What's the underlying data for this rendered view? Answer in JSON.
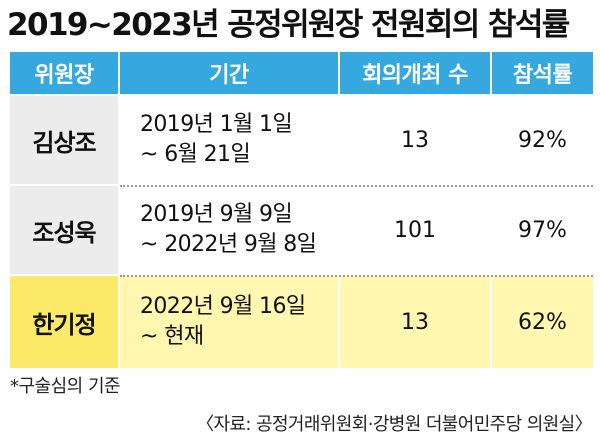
{
  "title": "2019~2023년 공정위원장 전원회의 참석률",
  "table": {
    "headers": [
      "위원장",
      "기간",
      "회의개최 수",
      "참석률"
    ],
    "rows": [
      {
        "name": "김상조",
        "period_line1": "2019년 1월 1일",
        "period_line2": "~ 6월 21일",
        "meetings": "13",
        "attendance": "92%"
      },
      {
        "name": "조성욱",
        "period_line1": "2019년 9월 9일",
        "period_line2": "~ 2022년 9월 8일",
        "meetings": "101",
        "attendance": "97%"
      },
      {
        "name": "한기정",
        "period_line1": "2022년 9월 16일",
        "period_line2": "~ 현재",
        "meetings": "13",
        "attendance": "62%"
      }
    ],
    "header_color": "#35a9df",
    "highlight_color": "#fce967"
  },
  "note": "*구술심의 기준",
  "source": "〈자료: 공정거래위원회·강병원 더불어민주당 의원실〉"
}
